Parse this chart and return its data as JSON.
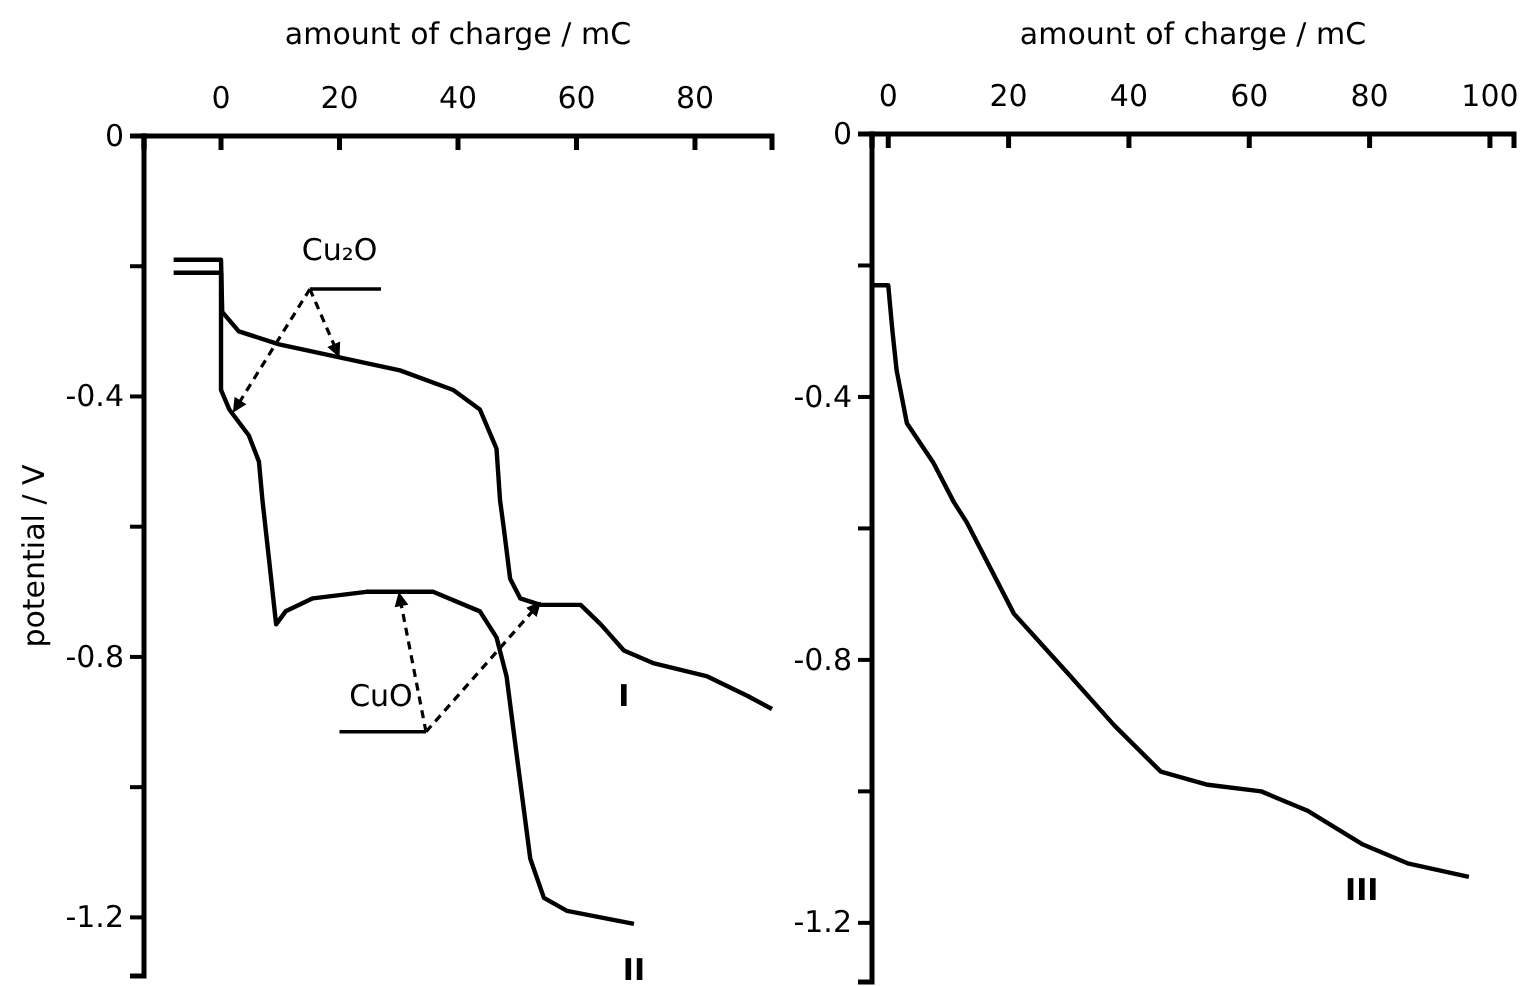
{
  "chart_data": [
    {
      "type": "line",
      "xlabel": "amount of charge / mC",
      "ylabel": "potential / V",
      "xlim": [
        -13,
        93
      ],
      "ylim": [
        -1.29,
        0
      ],
      "xticks": [
        0,
        20,
        40,
        60,
        80
      ],
      "yticks": [
        0,
        {
          "value": -0.2,
          "label": null
        },
        -0.4,
        {
          "value": -0.6,
          "label": null
        },
        -0.8,
        {
          "value": -1.0,
          "label": null
        },
        -1.2
      ],
      "series": [
        {
          "name": "I",
          "color": "#000000",
          "x": [
            -8,
            0,
            0.2,
            3,
            9.8,
            20,
            30.2,
            39.2,
            43.7,
            46.5,
            47.1,
            47.7,
            48.8,
            50.5,
            53.9,
            60.7,
            64.1,
            68,
            73.1,
            82.1,
            88.9,
            93
          ],
          "values": [
            -0.19,
            -0.19,
            -0.27,
            -0.3,
            -0.32,
            -0.34,
            -0.36,
            -0.39,
            -0.42,
            -0.48,
            -0.56,
            -0.6,
            -0.68,
            -0.71,
            -0.72,
            -0.72,
            -0.75,
            -0.79,
            -0.81,
            -0.83,
            -0.86,
            -0.88
          ]
        },
        {
          "name": "II",
          "color": "#000000",
          "x": [
            -8,
            0,
            0,
            1.4,
            4.7,
            6.4,
            7,
            8.1,
            9.3,
            10.9,
            15.5,
            24.5,
            35.8,
            43.7,
            46.5,
            48.2,
            49.9,
            52.2,
            54.5,
            58.4,
            69.7
          ],
          "values": [
            -0.21,
            -0.21,
            -0.39,
            -0.42,
            -0.46,
            -0.5,
            -0.56,
            -0.65,
            -0.75,
            -0.73,
            -0.71,
            -0.7,
            -0.7,
            -0.73,
            -0.77,
            -0.83,
            -0.95,
            -1.11,
            -1.17,
            -1.19,
            -1.21
          ]
        }
      ],
      "annotations": [
        {
          "text": "Cu₂O",
          "x": 20,
          "y": -0.34
        },
        {
          "text": "CuO",
          "x": 30,
          "y": -0.7
        }
      ]
    },
    {
      "type": "line",
      "xlabel": "amount of charge / mC",
      "xlim": [
        -2.7,
        104
      ],
      "ylim": [
        -1.29,
        0
      ],
      "xticks": [
        0,
        20,
        40,
        60,
        80,
        100
      ],
      "yticks": [
        0,
        {
          "value": -0.2,
          "label": null
        },
        -0.4,
        {
          "value": -0.6,
          "label": null
        },
        -0.8,
        {
          "value": -1.0,
          "label": null
        },
        -1.2
      ],
      "series": [
        {
          "name": "III",
          "color": "#000000",
          "x": [
            -2.4,
            0,
            0.7,
            1.4,
            3.1,
            7.5,
            10.9,
            13,
            20.9,
            29.8,
            37.6,
            45.3,
            53.1,
            62,
            69.8,
            78.7,
            86.5,
            96.5
          ],
          "values": [
            -0.23,
            -0.23,
            -0.3,
            -0.36,
            -0.44,
            -0.5,
            -0.56,
            -0.59,
            -0.73,
            -0.82,
            -0.9,
            -0.97,
            -0.99,
            -1.0,
            -1.03,
            -1.08,
            -1.11,
            -1.13
          ]
        }
      ]
    }
  ]
}
